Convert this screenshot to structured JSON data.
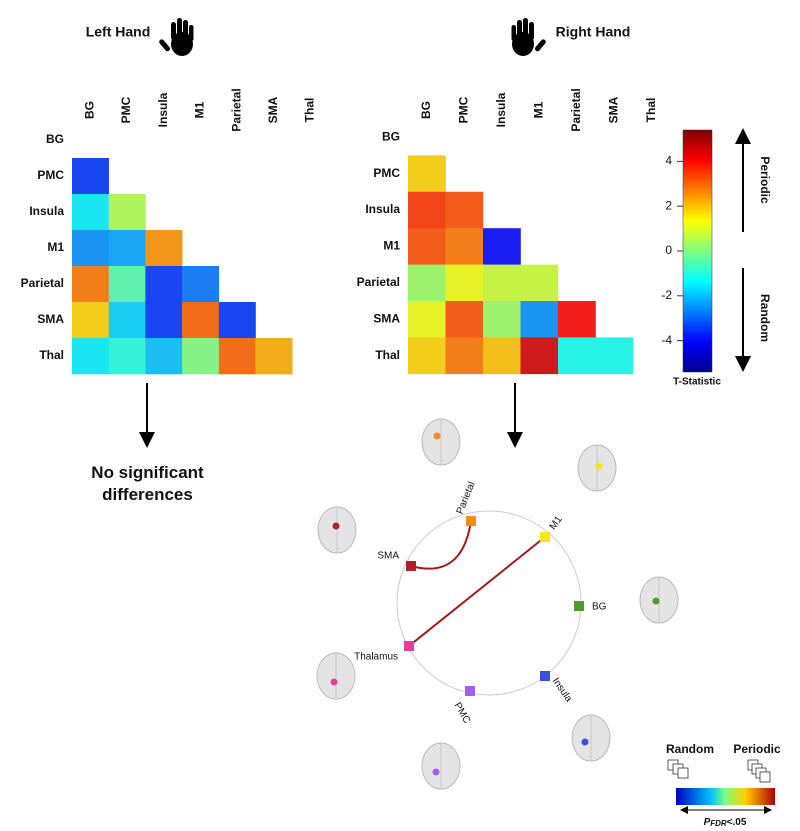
{
  "chart_data": [
    {
      "type": "heatmap",
      "title": "Left Hand",
      "categories": [
        "BG",
        "PMC",
        "Insula",
        "M1",
        "Parietal",
        "SMA",
        "Thal"
      ],
      "rows": [
        [],
        [
          -3.5
        ],
        [
          -1.5,
          0.5
        ],
        [
          -2.5,
          -2.3,
          2.5
        ],
        [
          2.8,
          -0.5,
          -3.5,
          -2.8
        ],
        [
          1.8,
          -1.8,
          -3.5,
          3,
          -3.5
        ],
        [
          -1.5,
          -1,
          -2,
          0,
          3,
          2.2
        ]
      ],
      "colormap": "jet",
      "clim": [
        -5.4,
        5.4
      ]
    },
    {
      "type": "heatmap",
      "title": "Right Hand",
      "categories": [
        "BG",
        "PMC",
        "Insula",
        "M1",
        "Parietal",
        "SMA",
        "Thal"
      ],
      "rows": [
        [],
        [
          1.8
        ],
        [
          3.5,
          3.2
        ],
        [
          3.2,
          2.8,
          -4
        ],
        [
          0.3,
          1.2,
          0.8,
          0.8
        ],
        [
          1.2,
          3.2,
          0.3,
          -2.5,
          4
        ],
        [
          1.8,
          2.8,
          2,
          4.5,
          -1.2,
          -1.2
        ]
      ],
      "colormap": "jet",
      "clim": [
        -5.4,
        5.4
      ],
      "colorbar": {
        "label": "T-Statistic",
        "ticks": [
          -4,
          -2,
          0,
          2,
          4
        ],
        "upper": "Periodic",
        "lower": "Random"
      }
    }
  ],
  "left_result": "No significant differences",
  "network": {
    "nodes": [
      {
        "label": "Parietal",
        "color": "#f28a1e"
      },
      {
        "label": "M1",
        "color": "#f5e61a"
      },
      {
        "label": "BG",
        "color": "#4f9a2c"
      },
      {
        "label": "Insula",
        "color": "#3a4fe0"
      },
      {
        "label": "PMC",
        "color": "#a060e8"
      },
      {
        "label": "Thalamus",
        "color": "#e0409a"
      },
      {
        "label": "SMA",
        "color": "#b0202a"
      }
    ],
    "legend": {
      "low": "Random",
      "high": "Periodic",
      "p": "P",
      "p_sub": "FDR",
      "p_rest": "<.05"
    }
  }
}
